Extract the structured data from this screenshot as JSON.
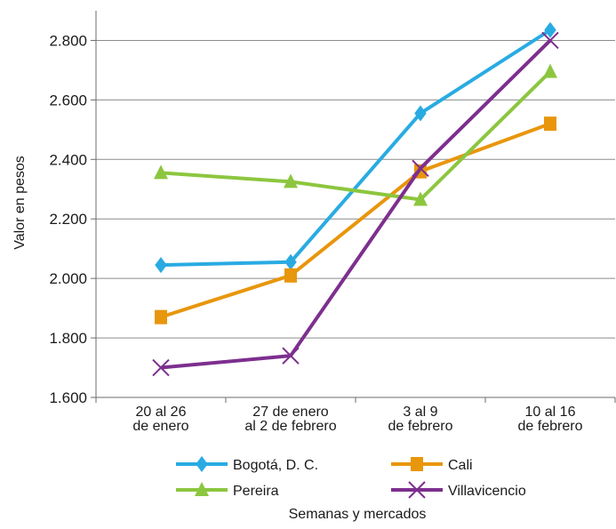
{
  "chart_data": {
    "type": "line",
    "categories": [
      [
        "20 al 26",
        "de enero"
      ],
      [
        "27 de enero",
        "al 2 de febrero"
      ],
      [
        "3 al 9",
        "de febrero"
      ],
      [
        "10 al 16",
        "de febrero"
      ]
    ],
    "xlabel": "Semanas y mercados",
    "ylabel": "Valor en pesos",
    "ylim": [
      1600,
      2900
    ],
    "yticks": [
      1600,
      1800,
      2000,
      2200,
      2400,
      2600,
      2800
    ],
    "ytick_labels": [
      "1.600",
      "1.800",
      "2.000",
      "2.200",
      "2.400",
      "2.600",
      "2.800"
    ],
    "grid": true,
    "legend_position": "bottom",
    "series": [
      {
        "name": "Bogotá, D. C.",
        "values": [
          2045,
          2055,
          2555,
          2835
        ],
        "color": "#29abe2",
        "marker": "diamond"
      },
      {
        "name": "Cali",
        "values": [
          1870,
          2010,
          2360,
          2520
        ],
        "color": "#e8960c",
        "marker": "square"
      },
      {
        "name": "Pereira",
        "values": [
          2355,
          2325,
          2265,
          2695
        ],
        "color": "#8cc63f",
        "marker": "triangle"
      },
      {
        "name": "Villavicencio",
        "values": [
          1700,
          1740,
          2370,
          2800
        ],
        "color": "#7d2f8e",
        "marker": "x"
      }
    ]
  }
}
